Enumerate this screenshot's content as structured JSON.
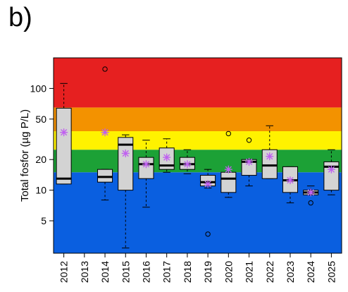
{
  "panel_label": "b)",
  "chart_data": {
    "type": "box",
    "ylabel": "Total fosfor (µg P/L)",
    "yscale": "log",
    "ylim": [
      2.4,
      200
    ],
    "yticks": [
      5,
      10,
      20,
      50,
      100
    ],
    "ytick_labels": [
      "5",
      "10",
      "20",
      "50",
      "100"
    ],
    "bands": [
      {
        "from": 2.4,
        "to": 15,
        "color": "#0a5fe0"
      },
      {
        "from": 15,
        "to": 25,
        "color": "#1ca136"
      },
      {
        "from": 25,
        "to": 38,
        "color": "#fff200"
      },
      {
        "from": 38,
        "to": 65,
        "color": "#f39200"
      },
      {
        "from": 65,
        "to": 200,
        "color": "#e62020"
      }
    ],
    "categories": [
      "2012",
      "2013",
      "2014",
      "2015",
      "2016",
      "2017",
      "2018",
      "2019",
      "2020",
      "2021",
      "2022",
      "2023",
      "2024",
      "2025"
    ],
    "boxes": [
      {
        "year": "2012",
        "whislo": 11.5,
        "q1": 11.5,
        "med": 13,
        "q3": 64,
        "whishi": 112,
        "mean": 37,
        "fliers": []
      },
      {
        "year": "2013"
      },
      {
        "year": "2014",
        "whislo": 8,
        "q1": 12,
        "med": 13.5,
        "q3": 16,
        "whishi": 16,
        "mean": 37,
        "fliers": [
          155
        ]
      },
      {
        "year": "2015",
        "whislo": 2.7,
        "q1": 10,
        "med": 28,
        "q3": 33,
        "whishi": 35,
        "mean": 23,
        "fliers": []
      },
      {
        "year": "2016",
        "whislo": 6.8,
        "q1": 13,
        "med": 18,
        "q3": 21,
        "whishi": 31,
        "mean": 18,
        "fliers": []
      },
      {
        "year": "2017",
        "whislo": 15,
        "q1": 16,
        "med": 17.5,
        "q3": 26,
        "whishi": 32,
        "mean": 21,
        "fliers": []
      },
      {
        "year": "2018",
        "whislo": 14.5,
        "q1": 16,
        "med": 18,
        "q3": 21,
        "whishi": 25,
        "mean": 18,
        "fliers": []
      },
      {
        "year": "2019",
        "whislo": 10.5,
        "q1": 11,
        "med": 12,
        "q3": 14,
        "whishi": 16,
        "mean": 11.5,
        "fliers": [
          3.7
        ]
      },
      {
        "year": "2020",
        "whislo": 8.5,
        "q1": 9.5,
        "med": 13,
        "q3": 15,
        "whishi": 15,
        "mean": 16,
        "fliers": [
          36
        ]
      },
      {
        "year": "2021",
        "whislo": 11,
        "q1": 14,
        "med": 19,
        "q3": 20,
        "whishi": 20,
        "mean": 19,
        "fliers": [
          31
        ]
      },
      {
        "year": "2022",
        "whislo": 13,
        "q1": 13,
        "med": 17.5,
        "q3": 25,
        "whishi": 43,
        "mean": 21.5,
        "fliers": []
      },
      {
        "year": "2023",
        "whislo": 7.5,
        "q1": 9.5,
        "med": 12.5,
        "q3": 17,
        "whishi": 17,
        "mean": 12.5,
        "fliers": []
      },
      {
        "year": "2024",
        "whislo": 9,
        "q1": 9,
        "med": 9.5,
        "q3": 10,
        "whishi": 11,
        "mean": 9.5,
        "fliers": [
          7.5
        ]
      },
      {
        "year": "2025",
        "whislo": 9,
        "q1": 10,
        "med": 17,
        "q3": 19,
        "whishi": 25,
        "mean": 16,
        "fliers": []
      }
    ],
    "box_color": "#d3d3d3",
    "mean_marker_color": "#c060f0"
  }
}
